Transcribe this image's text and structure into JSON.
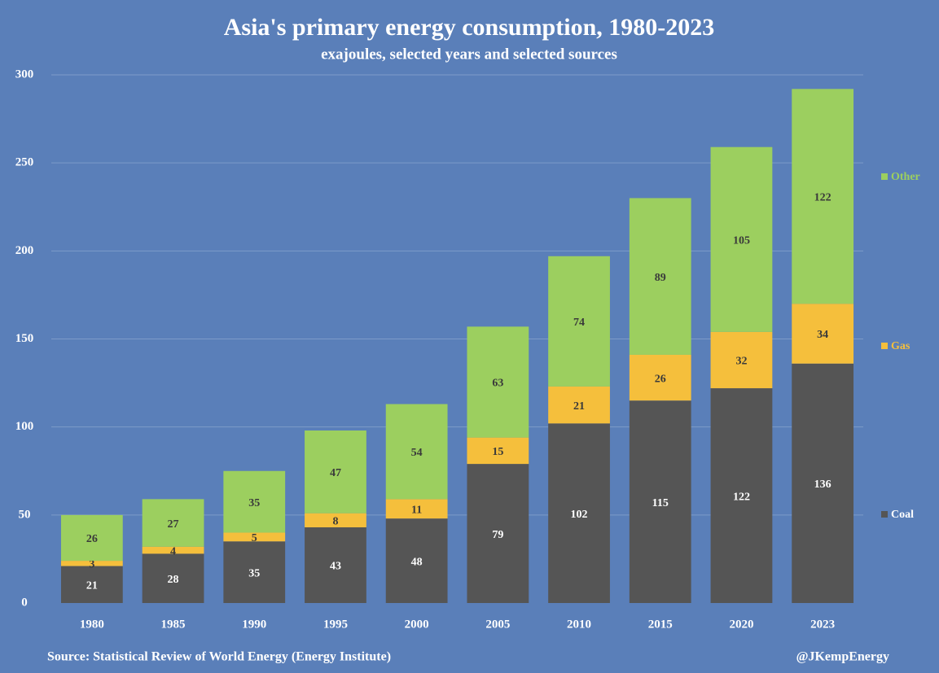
{
  "chart_data": {
    "type": "stacked_bar",
    "title": "Asia's primary energy consumption, 1980-2023",
    "subtitle": "exajoules, selected years and selected sources",
    "categories": [
      "1980",
      "1985",
      "1990",
      "1995",
      "2000",
      "2005",
      "2010",
      "2015",
      "2020",
      "2023"
    ],
    "series": [
      {
        "name": "Coal",
        "color": "#555555",
        "values": [
          21,
          28,
          35,
          43,
          48,
          79,
          102,
          115,
          122,
          136
        ]
      },
      {
        "name": "Gas",
        "color": "#f5bf3c",
        "values": [
          3,
          4,
          5,
          8,
          11,
          15,
          21,
          26,
          32,
          34
        ]
      },
      {
        "name": "Other",
        "color": "#9ccf5f",
        "values": [
          26,
          27,
          35,
          47,
          54,
          63,
          74,
          89,
          105,
          122
        ]
      }
    ],
    "ylim": [
      0,
      300
    ],
    "yticks": [
      0,
      50,
      100,
      150,
      200,
      250,
      300
    ],
    "grid": true,
    "legend": "right",
    "source": "Source: Statistical Review of World Energy (Energy Institute)",
    "credit": "@JKempEnergy"
  }
}
